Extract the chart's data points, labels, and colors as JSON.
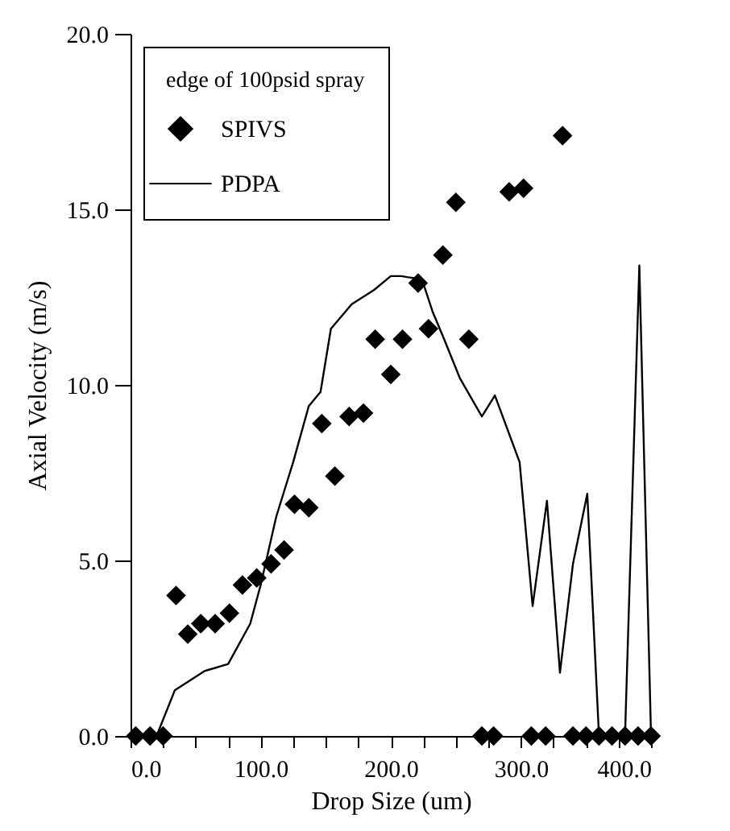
{
  "chart_data": {
    "type": "scatter",
    "xlabel": "Drop Size (um)",
    "ylabel": "Axial Velocity (m/s)",
    "legend_title": "edge of 100psid spray",
    "legend": "top left",
    "grid": false,
    "xlim": [
      0,
      400
    ],
    "xticks": [
      {
        "value": 0,
        "label": "0.0"
      },
      {
        "value": 25,
        "label": null
      },
      {
        "value": 50,
        "label": null
      },
      {
        "value": 75,
        "label": null
      },
      {
        "value": 100,
        "label": "100.0"
      },
      {
        "value": 125,
        "label": null
      },
      {
        "value": 150,
        "label": null
      },
      {
        "value": 175,
        "label": null
      },
      {
        "value": 200,
        "label": "200.0"
      },
      {
        "value": 225,
        "label": null
      },
      {
        "value": 250,
        "label": null
      },
      {
        "value": 275,
        "label": null
      },
      {
        "value": 300,
        "label": "300.0"
      },
      {
        "value": 325,
        "label": null
      },
      {
        "value": 350,
        "label": null
      },
      {
        "value": 375,
        "label": null
      },
      {
        "value": 400,
        "label": "400.0"
      }
    ],
    "ylim": [
      0,
      20
    ],
    "yticks": [
      {
        "value": 0,
        "label": "0.0"
      },
      {
        "value": 5,
        "label": "5.0"
      },
      {
        "value": 10,
        "label": "10.0"
      },
      {
        "value": 15,
        "label": "15.0"
      },
      {
        "value": 20,
        "label": "20.0"
      }
    ],
    "series": [
      {
        "name": "SPIVS",
        "type": "scatter",
        "marker": "diamond",
        "color": "#000000",
        "x": [
          4,
          15,
          25,
          35,
          44,
          54,
          65,
          76,
          86,
          97,
          108,
          118,
          126,
          137,
          147,
          157,
          168,
          179,
          188,
          200,
          209,
          221,
          229,
          240,
          250,
          260,
          270,
          279,
          291,
          302,
          308,
          319,
          332,
          340,
          350,
          360,
          370,
          380,
          390,
          400
        ],
        "values": [
          0,
          0,
          0,
          4.0,
          2.9,
          3.2,
          3.2,
          3.5,
          4.3,
          4.5,
          4.9,
          5.3,
          6.6,
          6.5,
          8.9,
          7.4,
          9.1,
          9.2,
          11.3,
          10.3,
          11.3,
          12.9,
          11.6,
          13.7,
          15.2,
          11.3,
          0,
          0,
          15.5,
          15.6,
          0,
          0,
          17.1,
          0,
          0,
          0,
          0,
          0,
          0,
          0
        ]
      },
      {
        "name": "PDPA",
        "type": "line",
        "marker": "none",
        "line_style": "solid",
        "color": "#000000",
        "x": [
          20,
          34,
          57,
          75,
          92,
          100,
          112,
          125,
          137,
          146,
          154,
          170,
          187,
          200,
          208,
          224,
          232,
          241,
          253,
          270,
          280,
          299,
          309,
          320,
          330,
          340,
          351,
          360,
          380,
          391,
          400
        ],
        "values": [
          0,
          1.3,
          1.85,
          2.05,
          3.2,
          4.3,
          6.25,
          7.8,
          9.4,
          9.8,
          11.6,
          12.3,
          12.7,
          13.1,
          13.1,
          13.0,
          12.1,
          11.3,
          10.2,
          9.1,
          9.7,
          7.8,
          3.7,
          6.7,
          1.8,
          4.9,
          6.9,
          0,
          0,
          13.4,
          0
        ]
      }
    ]
  }
}
